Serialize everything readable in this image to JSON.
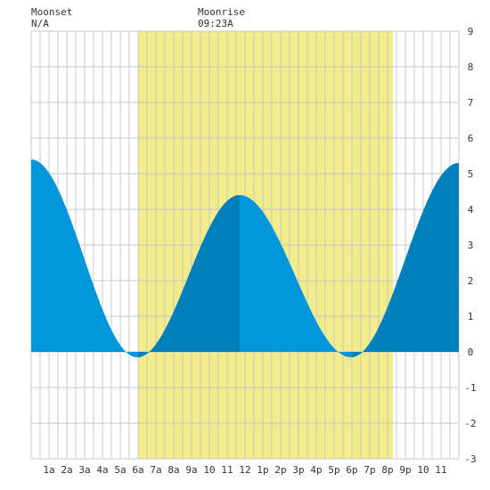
{
  "moonset": {
    "label": "Moonset",
    "value": "N/A"
  },
  "moonrise": {
    "label": "Moonrise",
    "value": "09:23A"
  },
  "chart_data": {
    "type": "area",
    "title": "",
    "xlabel": "",
    "ylabel": "",
    "xlim": [
      0,
      24
    ],
    "ylim": [
      -3,
      9
    ],
    "grid": true,
    "x_tick_labels": [
      "1a",
      "2a",
      "3a",
      "4a",
      "5a",
      "6a",
      "7a",
      "8a",
      "9a",
      "10",
      "11",
      "12",
      "1p",
      "2p",
      "3p",
      "4p",
      "5p",
      "6p",
      "7p",
      "8p",
      "9p",
      "10",
      "11"
    ],
    "y_tick_labels": [
      "-3",
      "-2",
      "-1",
      "0",
      "1",
      "2",
      "3",
      "4",
      "5",
      "6",
      "7",
      "8",
      "9"
    ],
    "daylight": {
      "start": 6.0,
      "end": 20.3,
      "color": "#f2ec8a"
    },
    "colors": {
      "tide": "#0096dc",
      "tide_dark": "#0080bb",
      "grid": "#c8c8c8",
      "background": "#ffffff"
    },
    "tide_extremes": [
      {
        "type": "high",
        "time": 0.0,
        "height": 5.4
      },
      {
        "type": "low",
        "time": 5.95,
        "height": -0.15
      },
      {
        "type": "high",
        "time": 11.7,
        "height": 4.4
      },
      {
        "type": "low",
        "time": 17.95,
        "height": -0.15
      },
      {
        "type": "high",
        "time": 24.0,
        "height": 5.3
      }
    ],
    "dark_intervals": [
      [
        6.0,
        11.7
      ],
      [
        18.0,
        24.0
      ]
    ]
  }
}
